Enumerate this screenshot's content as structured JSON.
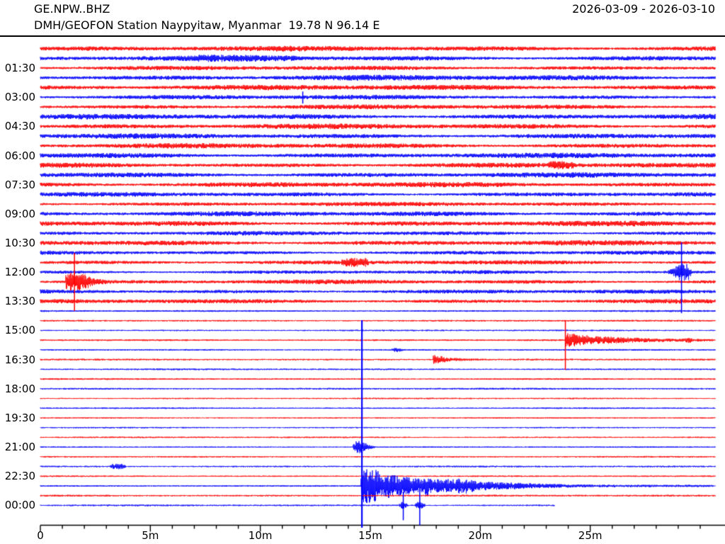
{
  "header": {
    "station_id": "GE.NPW..BHZ",
    "date_range": "2026-03-09 - 2026-03-10",
    "station_desc": "DMH/GEOFON Station Naypyitaw, Myanmar  19.78 N 96.14 E"
  },
  "chart_data": {
    "type": "line",
    "subtype": "helicorder-dayplot",
    "title": "GE.NPW..BHZ 2026-03-09 - 2026-03-10",
    "rows": 48,
    "minutes_per_row": 30,
    "row_label_every": 3,
    "y_axis": {
      "labels": [
        "01:30",
        "03:00",
        "04:30",
        "06:00",
        "07:30",
        "09:00",
        "10:30",
        "12:00",
        "13:30",
        "15:00",
        "16:30",
        "18:00",
        "19:30",
        "21:00",
        "22:30",
        "00:00"
      ]
    },
    "x_axis": {
      "major_ticks": [
        {
          "t": 0,
          "label": "0"
        },
        {
          "t": 5,
          "label": "5m"
        },
        {
          "t": 10,
          "label": "10m"
        },
        {
          "t": 15,
          "label": "15m"
        },
        {
          "t": 20,
          "label": "20m"
        },
        {
          "t": 25,
          "label": "25m"
        }
      ],
      "minor_tick_every_min": 1,
      "last_tick_min": 30
    },
    "colors": {
      "odd_row": "#ff0000",
      "even_row": "#0000ff",
      "axis": "#000000"
    },
    "noise_bands": [
      {
        "from_row": 1,
        "to_row": 21,
        "amp": 2.6,
        "mod": 0.45
      },
      {
        "from_row": 22,
        "to_row": 27,
        "amp": 2.0,
        "mod": 0.45
      },
      {
        "from_row": 28,
        "to_row": 48,
        "amp": 0.95,
        "mod": 0.2
      }
    ],
    "row_end_min": {
      "48": 23.4
    },
    "events": [
      {
        "name": "minor-spike-0300",
        "row": 6,
        "kind": "spike",
        "t": 11.93,
        "up": 8,
        "down": 9
      },
      {
        "name": "noise-patch-0100",
        "row": 2,
        "kind": "patch",
        "t0": 7.2,
        "t1": 11.7,
        "amp": 1.2
      },
      {
        "name": "noise-patch-0630",
        "row": 13,
        "kind": "patch",
        "t0": 23.2,
        "t1": 24.2,
        "amp": 3.0
      },
      {
        "name": "noise-patch-1130",
        "row": 23,
        "kind": "patch",
        "t0": 13.8,
        "t1": 14.8,
        "amp": 3.6
      },
      {
        "name": "quake-1229-burst",
        "row": 24,
        "kind": "burst",
        "env": [
          [
            28.55,
            3
          ],
          [
            28.85,
            7
          ],
          [
            29.0,
            13
          ],
          [
            29.45,
            12
          ],
          [
            29.6,
            3
          ]
        ]
      },
      {
        "name": "quake-1229-spike",
        "row": 24,
        "kind": "spike",
        "t": 29.15,
        "up": 42,
        "down": 58
      },
      {
        "name": "quake-1229-coda-burst",
        "row": 25,
        "kind": "burst",
        "env": [
          [
            1.15,
            10
          ],
          [
            1.45,
            14
          ],
          [
            2.0,
            11
          ],
          [
            2.4,
            5
          ],
          [
            3.6,
            1
          ]
        ]
      },
      {
        "name": "quake-1229-coda-spike",
        "row": 25,
        "kind": "spike",
        "t": 1.55,
        "up": 41,
        "down": 41
      },
      {
        "name": "quake-1554-coda",
        "row": 31,
        "kind": "burst",
        "env": [
          [
            23.86,
            10
          ],
          [
            24.3,
            9
          ],
          [
            25.2,
            6
          ],
          [
            26.5,
            4
          ],
          [
            28.0,
            2.5
          ],
          [
            29.3,
            2.2
          ],
          [
            29.45,
            4.5
          ],
          [
            29.7,
            2
          ],
          [
            30.6,
            1.5
          ]
        ]
      },
      {
        "name": "quake-1554-spike",
        "row": 31,
        "kind": "spike",
        "t": 23.87,
        "up": 28,
        "down": 42
      },
      {
        "name": "quake-1648-burst",
        "row": 33,
        "kind": "burst",
        "env": [
          [
            17.85,
            7
          ],
          [
            18.1,
            6
          ],
          [
            18.6,
            2.5
          ],
          [
            20.6,
            0.8
          ]
        ]
      },
      {
        "name": "tiny-patch-1600",
        "row": 32,
        "kind": "patch",
        "t0": 16.1,
        "t1": 16.35,
        "amp": 2.0
      },
      {
        "name": "foreshock-2114",
        "row": 42,
        "kind": "burst",
        "env": [
          [
            14.2,
            4
          ],
          [
            14.35,
            10
          ],
          [
            14.75,
            6
          ],
          [
            15.2,
            1
          ]
        ]
      },
      {
        "name": "noise-patch-2200",
        "row": 44,
        "kind": "patch",
        "t0": 3.3,
        "t1": 3.75,
        "amp": 3.2
      },
      {
        "name": "mainshock-2314-burst",
        "row": 46,
        "kind": "burst",
        "env": [
          [
            14.55,
            22
          ],
          [
            15.0,
            26
          ],
          [
            15.6,
            18
          ],
          [
            16.6,
            13
          ],
          [
            17.3,
            10
          ],
          [
            17.5,
            16
          ],
          [
            17.8,
            9
          ],
          [
            18.7,
            10
          ],
          [
            19.4,
            11
          ],
          [
            19.8,
            7
          ],
          [
            21.3,
            5
          ],
          [
            23.0,
            3
          ],
          [
            24.5,
            2
          ],
          [
            30.6,
            1.4
          ]
        ]
      },
      {
        "name": "mainshock-2314-spike",
        "row": 46,
        "kind": "spike",
        "t": 14.62,
        "up": 234,
        "down": 240
      },
      {
        "name": "aftershock-0000-a-burst",
        "row": 48,
        "kind": "burst",
        "env": [
          [
            16.3,
            2
          ],
          [
            16.45,
            5
          ],
          [
            16.7,
            2
          ]
        ]
      },
      {
        "name": "aftershock-0000-a-spike",
        "row": 48,
        "kind": "spike",
        "t": 16.5,
        "up": 19,
        "down": 21
      },
      {
        "name": "aftershock-0000-b-burst",
        "row": 48,
        "kind": "burst",
        "env": [
          [
            17.0,
            2
          ],
          [
            17.2,
            6
          ],
          [
            17.5,
            2
          ]
        ]
      },
      {
        "name": "aftershock-0000-b-spike",
        "row": 48,
        "kind": "spike",
        "t": 17.25,
        "up": 24,
        "down": 28
      }
    ]
  }
}
